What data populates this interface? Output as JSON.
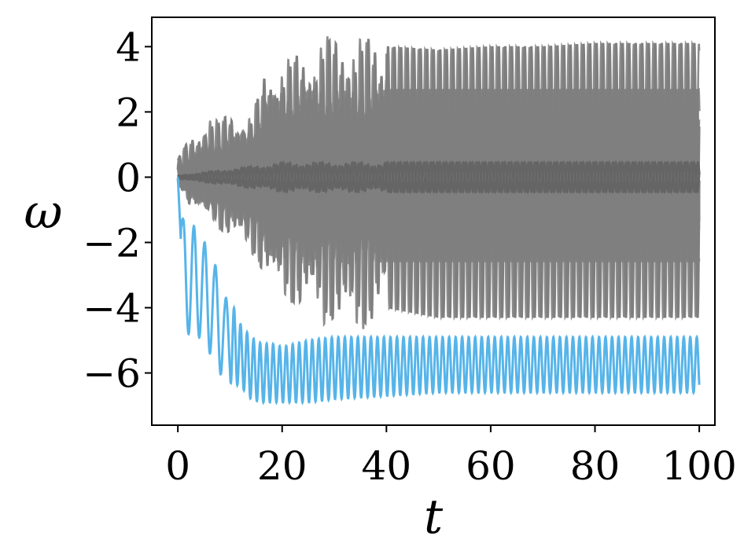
{
  "chart_data": {
    "type": "line",
    "xlabel": "t",
    "ylabel": "ω",
    "xlim": [
      -5,
      103
    ],
    "ylim": [
      -7.6,
      4.9
    ],
    "x_ticks": [
      0,
      20,
      40,
      60,
      80,
      100
    ],
    "y_ticks": [
      4,
      2,
      0,
      -2,
      -4,
      -6
    ],
    "x_tick_labels": [
      "0",
      "20",
      "40",
      "60",
      "80",
      "100"
    ],
    "y_tick_labels": [
      "4",
      "2",
      "0",
      "−2",
      "−4",
      "−6"
    ],
    "grid": false,
    "legend": "none",
    "colors": {
      "highlight": "#56b4e9",
      "others": "#7f7f7f",
      "center": "#656565"
    },
    "series": [
      {
        "role": "highlight",
        "x": [
          0,
          1,
          2,
          3,
          4,
          5,
          6,
          7,
          8,
          9,
          10,
          12,
          14,
          16,
          18,
          20,
          25,
          30,
          40,
          50,
          60,
          70,
          80,
          90,
          100
        ],
        "y": [
          0,
          -4.8,
          -1.3,
          -4.9,
          -1.5,
          -4.8,
          -2.0,
          -5.4,
          -2.7,
          -6.2,
          -3.7,
          -6.3,
          -6.7,
          -6.9,
          -6.8,
          -6.8,
          -6.9,
          -6.7,
          -6.6,
          -6.6,
          -6.6,
          -6.6,
          -6.6,
          -6.6,
          -6.2
        ],
        "band_upper": [
          0,
          -1.3,
          -1.3,
          -1.5,
          -1.5,
          -2.0,
          -2.0,
          -2.7,
          -2.7,
          -3.7,
          -3.7,
          -4.5,
          -4.9,
          -5.1,
          -5.1,
          -5.2,
          -5.0,
          -4.9,
          -4.9,
          -4.9,
          -4.9,
          -4.9,
          -4.9,
          -4.9,
          -4.9
        ],
        "band_lower": [
          0,
          -4.8,
          -4.8,
          -4.9,
          -4.9,
          -5.0,
          -5.4,
          -5.4,
          -6.0,
          -6.2,
          -6.3,
          -6.4,
          -6.8,
          -6.9,
          -6.9,
          -6.9,
          -6.9,
          -6.8,
          -6.7,
          -6.6,
          -6.6,
          -6.6,
          -6.6,
          -6.6,
          -6.6
        ]
      },
      {
        "role": "others",
        "envelope_x": [
          0,
          2,
          4,
          6,
          8,
          10,
          12,
          14,
          16,
          17,
          18,
          20,
          25,
          28,
          30,
          34,
          40,
          50,
          60,
          70,
          80,
          90,
          100
        ],
        "envelope_upper": [
          0.6,
          1.1,
          1.3,
          1.9,
          1.7,
          2.0,
          1.8,
          1.9,
          2.7,
          3.5,
          3.3,
          3.6,
          3.8,
          4.4,
          4.2,
          4.4,
          4.0,
          3.9,
          4.0,
          4.0,
          4.1,
          4.1,
          4.1
        ],
        "envelope_lower": [
          0,
          -0.8,
          -1.0,
          -1.2,
          -1.6,
          -1.8,
          -2.0,
          -2.3,
          -2.8,
          -3.0,
          -3.4,
          -3.8,
          -4.0,
          -4.6,
          -4.3,
          -4.9,
          -4.0,
          -4.3,
          -4.3,
          -4.3,
          -4.3,
          -4.3,
          -4.3
        ],
        "inner_upper": [
          0.4,
          0.6,
          0.8,
          1.0,
          1.1,
          1.2,
          1.3,
          1.5,
          2.0,
          2.4,
          2.5,
          2.6,
          2.7,
          2.7,
          2.7,
          2.6,
          2.7,
          2.7,
          2.7,
          2.7,
          2.7,
          2.7,
          2.7
        ],
        "inner_lower": [
          -0.3,
          -0.6,
          -0.8,
          -1.0,
          -1.1,
          -1.2,
          -1.3,
          -1.6,
          -2.0,
          -2.3,
          -2.5,
          -2.6,
          -2.7,
          -2.8,
          -2.7,
          -2.7,
          -2.6,
          -2.6,
          -2.6,
          -2.6,
          -2.6,
          -2.6,
          -2.6
        ]
      }
    ]
  }
}
